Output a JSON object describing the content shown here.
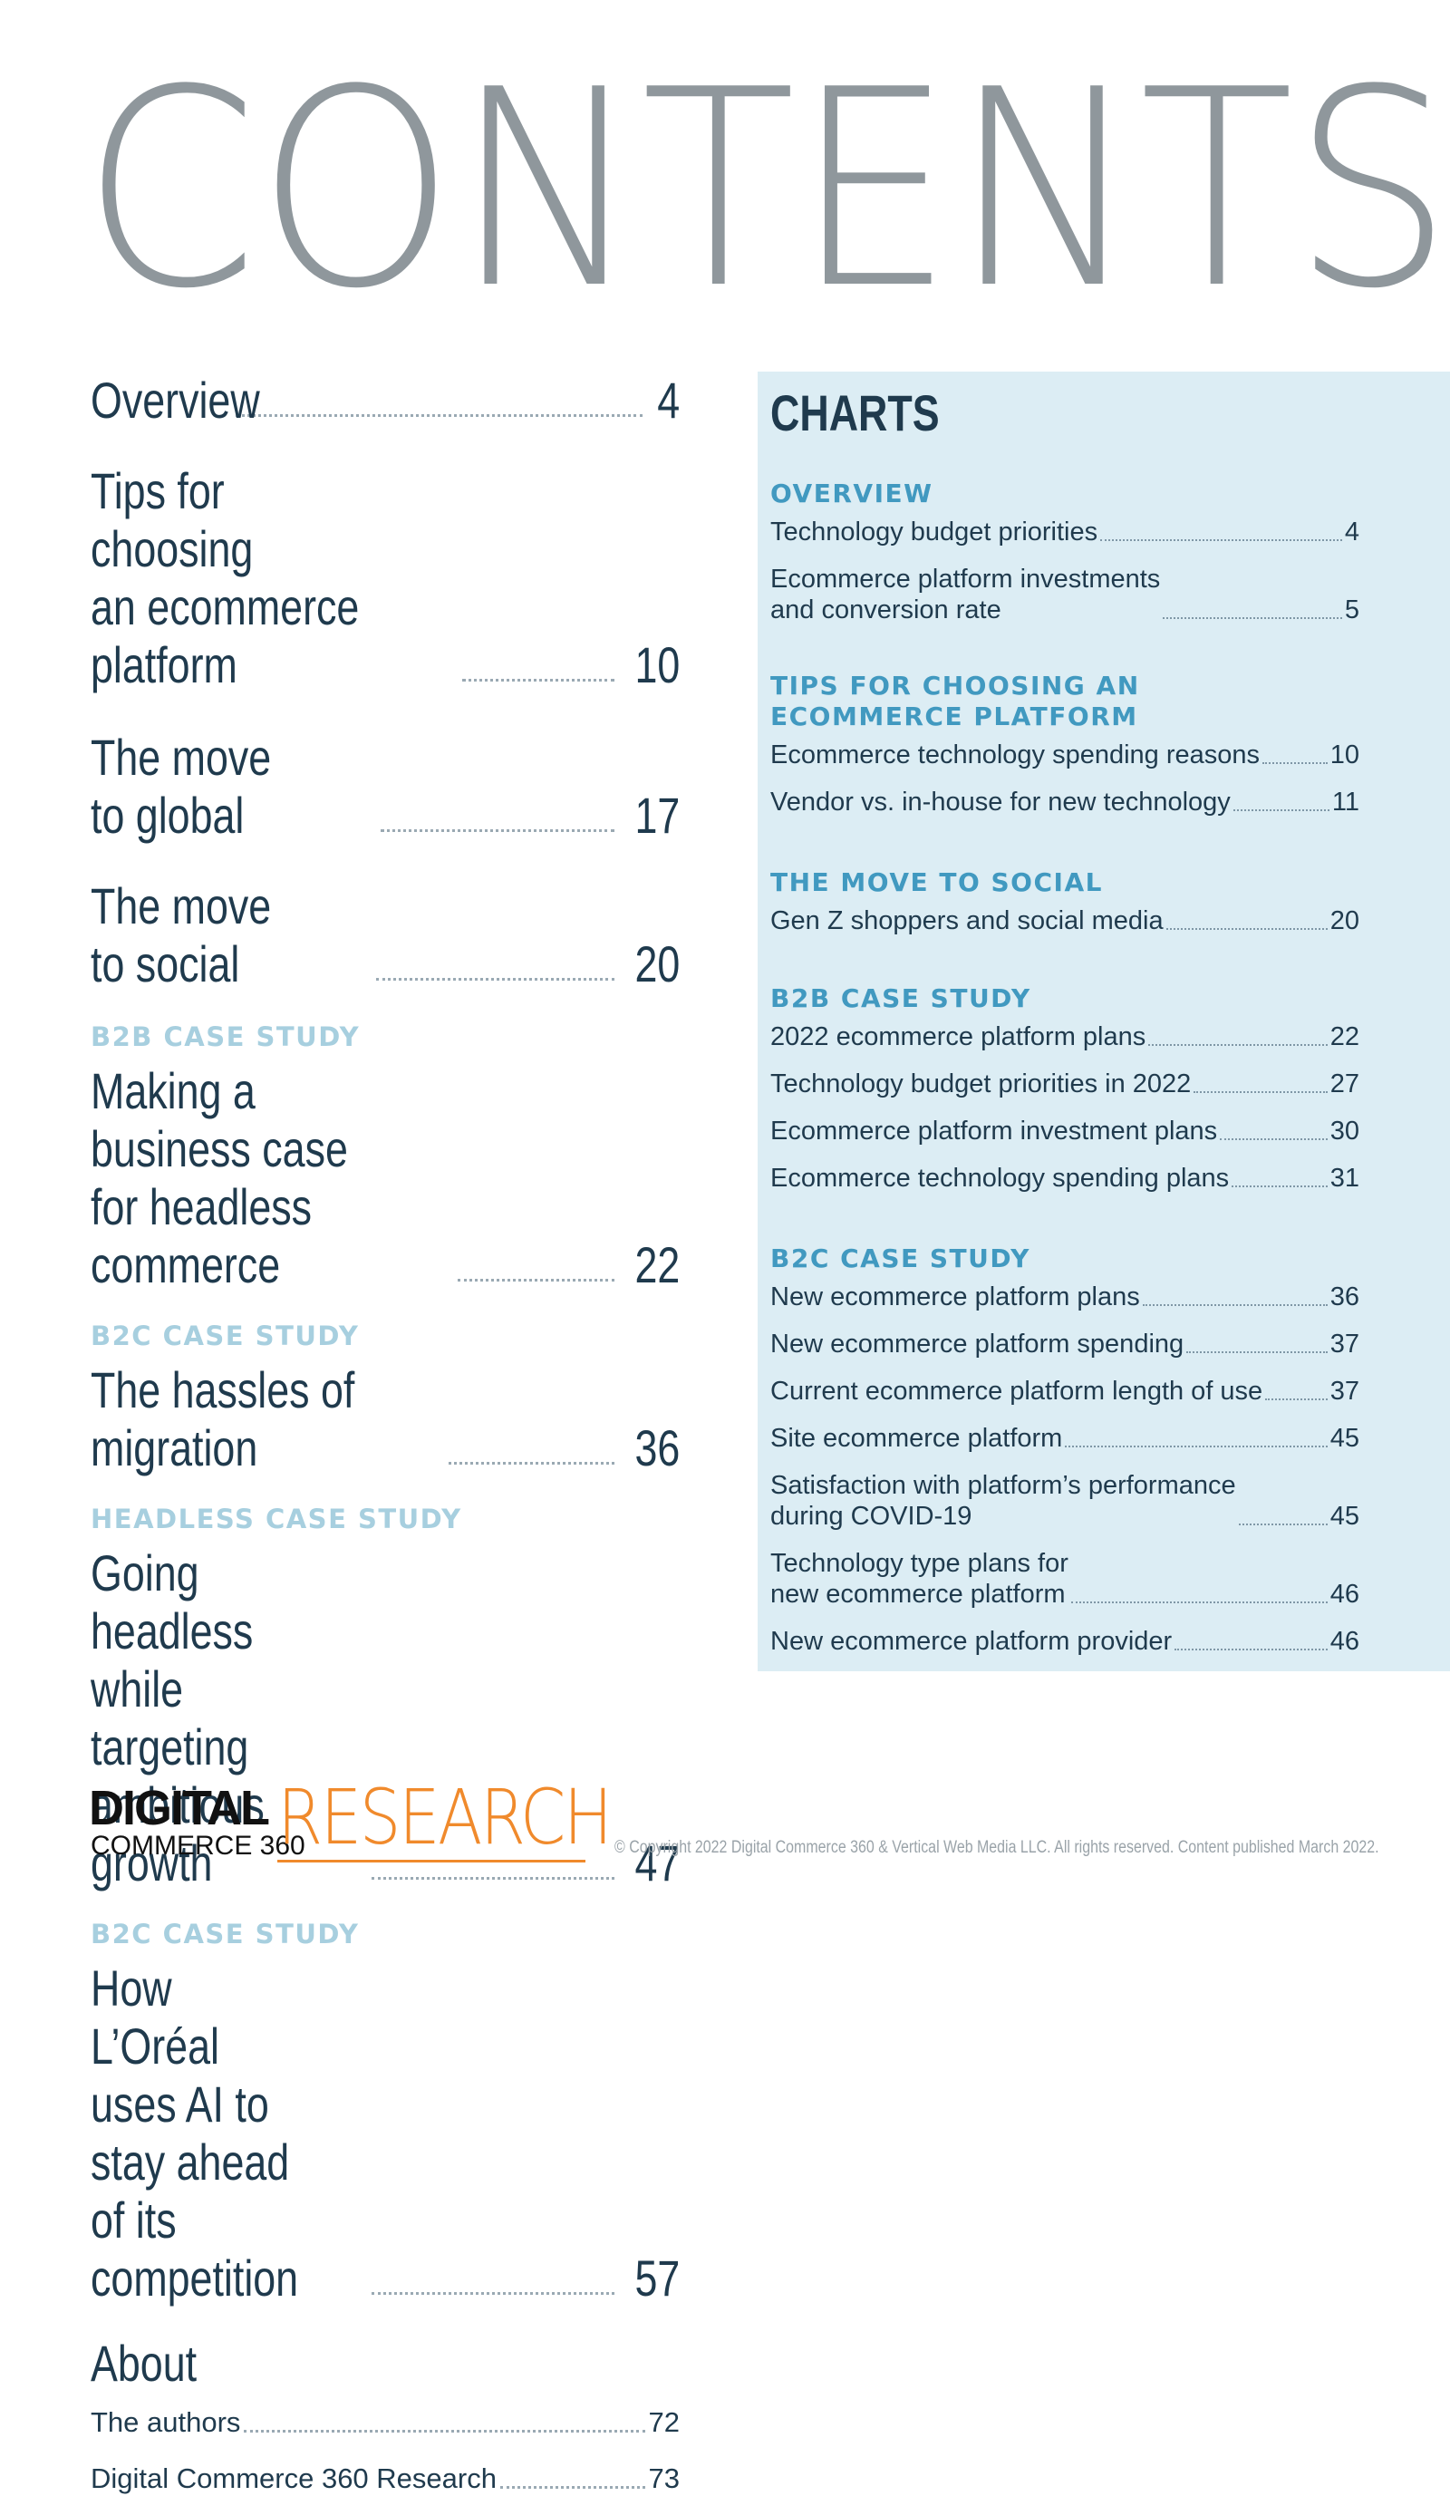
{
  "title": "CONTENTS",
  "toc": {
    "overview": {
      "text": "Overview",
      "page": "4"
    },
    "tips": {
      "text": "Tips for choosing\nan ecommerce platform",
      "page": "10"
    },
    "global": {
      "text": "The move to global",
      "page": "17"
    },
    "social": {
      "text": "The move to social",
      "page": "20"
    },
    "b2b_label": "B2B CASE STUDY",
    "b2b": {
      "text": "Making a business case\nfor headless commerce",
      "page": "22"
    },
    "b2c_label": "B2C CASE STUDY",
    "b2c": {
      "text": "The hassles of migration",
      "page": "36"
    },
    "headless_label": "HEADLESS CASE STUDY",
    "headless": {
      "text": "Going headless while targeting\nambitious growth",
      "page": "47"
    },
    "b2c2_label": "B2C CASE STUDY",
    "loreal": {
      "text": "How L’Oréal uses AI to stay ahead\nof its competition",
      "page": "57"
    },
    "about": {
      "text": "About"
    },
    "authors": {
      "text": "The authors",
      "page": "72"
    },
    "research": {
      "text": "Digital Commerce 360 Research",
      "page": "73"
    }
  },
  "charts": {
    "title": "CHARTS",
    "sections": [
      {
        "label": "OVERVIEW",
        "items": [
          {
            "text": "Technology budget priorities",
            "page": "4"
          },
          {
            "text": "Ecommerce platform investments\nand conversion rate",
            "page": "5"
          }
        ]
      },
      {
        "label": "TIPS FOR CHOOSING AN\nECOMMERCE PLATFORM",
        "items": [
          {
            "text": "Ecommerce technology spending reasons",
            "page": "10"
          },
          {
            "text": "Vendor vs. in-house for new technology",
            "page": "11"
          }
        ]
      },
      {
        "label": "THE MOVE TO SOCIAL",
        "items": [
          {
            "text": "Gen Z shoppers and social media",
            "page": "20"
          }
        ]
      },
      {
        "label": "B2B CASE STUDY",
        "items": [
          {
            "text": "2022 ecommerce platform plans",
            "page": "22"
          },
          {
            "text": "Technology budget priorities in 2022",
            "page": "27"
          },
          {
            "text": "Ecommerce platform investment plans",
            "page": "30"
          },
          {
            "text": "Ecommerce technology spending plans",
            "page": "31"
          }
        ]
      },
      {
        "label": "B2C CASE STUDY",
        "items": [
          {
            "text": "New ecommerce platform plans",
            "page": "36"
          },
          {
            "text": "New ecommerce platform spending",
            "page": "37"
          },
          {
            "text": "Current ecommerce platform length of use",
            "page": "37"
          },
          {
            "text": "Site ecommerce platform",
            "page": "45"
          },
          {
            "text": "Satisfaction with platform’s performance\nduring COVID-19",
            "page": "45"
          },
          {
            "text": "Technology type plans for\nnew ecommerce platform",
            "page": "46"
          },
          {
            "text": "New ecommerce platform provider",
            "page": "46"
          }
        ]
      }
    ]
  },
  "footer": {
    "logo_digital": "DIGITAL",
    "logo_commerce": "COMMERCE 360",
    "logo_research": "RESEARCH",
    "copyright": "© Copyright 2022 Digital Commerce 360 & Vertical Web Media LLC. All rights reserved. Content published March 2022."
  }
}
